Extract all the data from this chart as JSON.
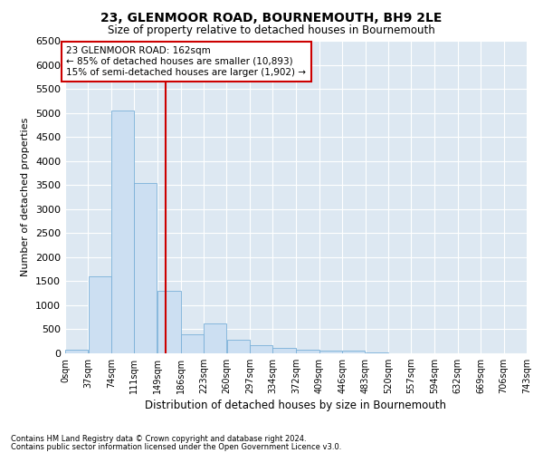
{
  "title": "23, GLENMOOR ROAD, BOURNEMOUTH, BH9 2LE",
  "subtitle": "Size of property relative to detached houses in Bournemouth",
  "xlabel": "Distribution of detached houses by size in Bournemouth",
  "ylabel": "Number of detached properties",
  "bar_color": "#ccdff2",
  "bar_edge_color": "#7ab0d8",
  "background_color": "#dde8f2",
  "annotation_text": "23 GLENMOOR ROAD: 162sqm\n← 85% of detached houses are smaller (10,893)\n15% of semi-detached houses are larger (1,902) →",
  "property_size": 162,
  "vline_color": "#cc0000",
  "categories": [
    "0sqm",
    "37sqm",
    "74sqm",
    "111sqm",
    "149sqm",
    "186sqm",
    "223sqm",
    "260sqm",
    "297sqm",
    "334sqm",
    "372sqm",
    "409sqm",
    "446sqm",
    "483sqm",
    "520sqm",
    "557sqm",
    "594sqm",
    "632sqm",
    "669sqm",
    "706sqm",
    "743sqm"
  ],
  "bin_edges": [
    0,
    37,
    74,
    111,
    149,
    186,
    223,
    260,
    297,
    334,
    372,
    409,
    446,
    483,
    520,
    557,
    594,
    632,
    669,
    706,
    743
  ],
  "bar_heights": [
    80,
    1600,
    5050,
    3550,
    1300,
    400,
    620,
    290,
    175,
    110,
    80,
    55,
    65,
    10,
    5,
    3,
    2,
    1,
    1,
    0,
    0
  ],
  "ylim": [
    0,
    6500
  ],
  "yticks": [
    0,
    500,
    1000,
    1500,
    2000,
    2500,
    3000,
    3500,
    4000,
    4500,
    5000,
    5500,
    6000,
    6500
  ],
  "footnote1": "Contains HM Land Registry data © Crown copyright and database right 2024.",
  "footnote2": "Contains public sector information licensed under the Open Government Licence v3.0."
}
